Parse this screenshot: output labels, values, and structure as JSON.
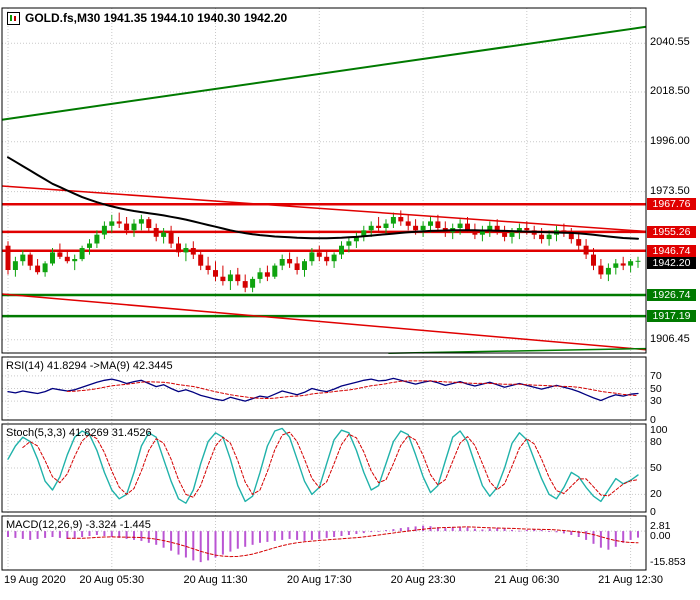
{
  "header": {
    "symbol": "GOLD.fs,M30",
    "ohlc_text": "1941.35 1944.10 1940.30 1942.20",
    "title": "GOLD.fs,M30 1941.35 1944.10 1940.30 1942.20"
  },
  "panes": {
    "rsi_label": "RSI(14) 41.8294  ->MA(9) 42.3445",
    "stoch_label": "Stoch(5,3,3) 41.8269 31.4526",
    "macd_label": "MACD(12,26,9) -3.324 -1.445"
  },
  "colors": {
    "up": "#0fa30f",
    "down": "#d40000",
    "ma": "#000000",
    "resistance": "#e00000",
    "support": "#007a00",
    "current": "#000000",
    "rsi": "#000080",
    "stoch": "#20b2aa",
    "signal": "#d40000",
    "macd_hist": "#ba55d3",
    "grid": "#c9c9c9",
    "border": "#000000"
  },
  "chart_data": [
    {
      "type": "candlestick",
      "symbol": "GOLD.fs",
      "timeframe": "M30",
      "open": 1941.35,
      "high": 1944.1,
      "low": 1940.3,
      "close": 1942.2,
      "ylim": [
        1900.5,
        2056.5
      ],
      "ohlc": [
        [
          1949,
          1951,
          1936,
          1938
        ],
        [
          1938,
          1944,
          1935,
          1942
        ],
        [
          1942,
          1947,
          1940,
          1945
        ],
        [
          1945,
          1946,
          1938,
          1940
        ],
        [
          1940,
          1943,
          1936,
          1937
        ],
        [
          1937,
          1942,
          1935,
          1941
        ],
        [
          1941,
          1948,
          1940,
          1946
        ],
        [
          1946,
          1950,
          1943,
          1944
        ],
        [
          1944,
          1947,
          1941,
          1942
        ],
        [
          1942,
          1945,
          1938,
          1943
        ],
        [
          1943,
          1949,
          1942,
          1948
        ],
        [
          1948,
          1952,
          1945,
          1950
        ],
        [
          1950,
          1956,
          1948,
          1954
        ],
        [
          1954,
          1960,
          1952,
          1958
        ],
        [
          1958,
          1963,
          1955,
          1960
        ],
        [
          1960,
          1964,
          1957,
          1959
        ],
        [
          1959,
          1962,
          1954,
          1956
        ],
        [
          1956,
          1961,
          1953,
          1959
        ],
        [
          1959,
          1963,
          1956,
          1961
        ],
        [
          1961,
          1962,
          1955,
          1957
        ],
        [
          1957,
          1959,
          1951,
          1953
        ],
        [
          1953,
          1957,
          1950,
          1955
        ],
        [
          1955,
          1958,
          1948,
          1950
        ],
        [
          1950,
          1953,
          1944,
          1946
        ],
        [
          1946,
          1950,
          1942,
          1948
        ],
        [
          1948,
          1951,
          1943,
          1945
        ],
        [
          1945,
          1947,
          1938,
          1940
        ],
        [
          1940,
          1944,
          1936,
          1938
        ],
        [
          1938,
          1942,
          1933,
          1935
        ],
        [
          1935,
          1940,
          1931,
          1933
        ],
        [
          1933,
          1938,
          1929,
          1936
        ],
        [
          1936,
          1939,
          1931,
          1933
        ],
        [
          1933,
          1936,
          1928,
          1930
        ],
        [
          1930,
          1935,
          1928,
          1934
        ],
        [
          1934,
          1939,
          1932,
          1937
        ],
        [
          1937,
          1940,
          1933,
          1935
        ],
        [
          1935,
          1941,
          1934,
          1940
        ],
        [
          1940,
          1945,
          1938,
          1943
        ],
        [
          1943,
          1946,
          1939,
          1941
        ],
        [
          1941,
          1944,
          1936,
          1938
        ],
        [
          1938,
          1943,
          1935,
          1942
        ],
        [
          1942,
          1948,
          1940,
          1946
        ],
        [
          1946,
          1949,
          1942,
          1944
        ],
        [
          1944,
          1947,
          1940,
          1942
        ],
        [
          1942,
          1946,
          1939,
          1945
        ],
        [
          1945,
          1951,
          1943,
          1949
        ],
        [
          1949,
          1953,
          1946,
          1951
        ],
        [
          1951,
          1955,
          1948,
          1953
        ],
        [
          1953,
          1958,
          1951,
          1956
        ],
        [
          1956,
          1960,
          1953,
          1958
        ],
        [
          1958,
          1962,
          1955,
          1957
        ],
        [
          1957,
          1961,
          1954,
          1959
        ],
        [
          1959,
          1964,
          1957,
          1962
        ],
        [
          1962,
          1965,
          1958,
          1960
        ],
        [
          1960,
          1963,
          1956,
          1958
        ],
        [
          1958,
          1961,
          1954,
          1956
        ],
        [
          1956,
          1960,
          1953,
          1958
        ],
        [
          1958,
          1962,
          1955,
          1960
        ],
        [
          1960,
          1963,
          1956,
          1957
        ],
        [
          1957,
          1960,
          1953,
          1955
        ],
        [
          1955,
          1959,
          1952,
          1957
        ],
        [
          1957,
          1961,
          1954,
          1959
        ],
        [
          1959,
          1962,
          1955,
          1956
        ],
        [
          1956,
          1959,
          1952,
          1954
        ],
        [
          1954,
          1958,
          1951,
          1956
        ],
        [
          1956,
          1960,
          1953,
          1958
        ],
        [
          1958,
          1961,
          1954,
          1955
        ],
        [
          1955,
          1958,
          1951,
          1953
        ],
        [
          1953,
          1957,
          1950,
          1955
        ],
        [
          1955,
          1959,
          1952,
          1957
        ],
        [
          1957,
          1960,
          1954,
          1956
        ],
        [
          1956,
          1958,
          1952,
          1954
        ],
        [
          1954,
          1957,
          1950,
          1952
        ],
        [
          1952,
          1956,
          1949,
          1954
        ],
        [
          1954,
          1958,
          1951,
          1956
        ],
        [
          1956,
          1959,
          1953,
          1955
        ],
        [
          1955,
          1957,
          1950,
          1952
        ],
        [
          1952,
          1955,
          1947,
          1949
        ],
        [
          1949,
          1952,
          1943,
          1945
        ],
        [
          1945,
          1948,
          1938,
          1940
        ],
        [
          1940,
          1943,
          1934,
          1936
        ],
        [
          1936,
          1941,
          1933,
          1939
        ],
        [
          1939,
          1943,
          1936,
          1941
        ],
        [
          1941,
          1944,
          1938,
          1940
        ],
        [
          1940,
          1943,
          1937,
          1942
        ],
        [
          1942,
          1944,
          1939,
          1942.2
        ]
      ],
      "ma_values": [
        1989,
        1987,
        1985,
        1983,
        1981,
        1979,
        1977,
        1975.5,
        1974,
        1972.5,
        1971,
        1969.8,
        1968.7,
        1967.7,
        1966.8,
        1966,
        1965.3,
        1964.7,
        1964.2,
        1963.7,
        1963.2,
        1962.7,
        1962.1,
        1961.5,
        1960.8,
        1960,
        1959.2,
        1958.4,
        1957.6,
        1956.8,
        1956,
        1955.3,
        1954.7,
        1954.2,
        1953.8,
        1953.5,
        1953.2,
        1953,
        1952.8,
        1952.6,
        1952.5,
        1952.4,
        1952.4,
        1952.4,
        1952.5,
        1952.6,
        1952.8,
        1953,
        1953.3,
        1953.6,
        1953.9,
        1954.2,
        1954.5,
        1954.8,
        1955.1,
        1955.3,
        1955.5,
        1955.7,
        1955.8,
        1955.9,
        1956,
        1956,
        1956,
        1956,
        1955.9,
        1955.9,
        1955.8,
        1955.7,
        1955.6,
        1955.5,
        1955.4,
        1955.3,
        1955.2,
        1955.1,
        1955,
        1954.9,
        1954.8,
        1954.6,
        1954.3,
        1954,
        1953.6,
        1953.2,
        1952.8,
        1952.5,
        1952.3,
        1952.2
      ],
      "grid": [
        {
          "label": "2040.55",
          "price": 2040.55
        },
        {
          "label": "2018.50",
          "price": 2018.5
        },
        {
          "label": "1996.00",
          "price": 1996.0
        },
        {
          "label": "1973.50",
          "price": 1973.5
        },
        {
          "label": "1906.45",
          "price": 1906.45
        }
      ],
      "levels": [
        {
          "label": "1967.76",
          "price": 1967.76,
          "kind": "resistance"
        },
        {
          "label": "1955.26",
          "price": 1955.26,
          "kind": "resistance"
        },
        {
          "label": "1946.74",
          "price": 1946.74,
          "kind": "resistance"
        },
        {
          "label": "1942.20",
          "price": 1942.2,
          "kind": "current"
        },
        {
          "label": "1926.74",
          "price": 1926.74,
          "kind": "support"
        },
        {
          "label": "1917.19",
          "price": 1917.19,
          "kind": "support"
        }
      ],
      "trendlines": [
        {
          "x1": 0,
          "p1": 2006,
          "x2": 1,
          "p2": 2048,
          "kind": "support",
          "width": 2
        },
        {
          "x1": 0,
          "p1": 1976,
          "x2": 1,
          "p2": 1955.5,
          "kind": "resistance",
          "width": 1.5
        },
        {
          "x1": 0,
          "p1": 1927.2,
          "x2": 1,
          "p2": 1902,
          "kind": "resistance",
          "width": 1.5
        },
        {
          "x1": 0.6,
          "p1": 1900.4,
          "x2": 1,
          "p2": 1902.5,
          "kind": "support",
          "width": 1.5
        }
      ],
      "x_labels": [
        "19 Aug 2020",
        "20 Aug 05:30",
        "20 Aug 11:30",
        "20 Aug 17:30",
        "20 Aug 23:30",
        "21 Aug 06:30",
        "21 Aug 12:30"
      ],
      "x_label_indices": [
        0,
        14,
        28,
        42,
        56,
        70,
        84
      ]
    },
    {
      "type": "line",
      "name": "RSI(14)",
      "value": 41.8294,
      "ma_value": 42.3445,
      "ma_period": 9,
      "ylim": [
        0,
        100
      ],
      "grid_values": [
        30,
        50,
        70
      ],
      "axis_labels": [
        {
          "label": "70",
          "value": 70
        },
        {
          "label": "50",
          "value": 50
        },
        {
          "label": "30",
          "value": 30
        },
        {
          "label": "0",
          "value": 0
        }
      ],
      "values": [
        45,
        43,
        46,
        44,
        42,
        45,
        50,
        48,
        46,
        48,
        52,
        56,
        60,
        63,
        65,
        62,
        58,
        61,
        63,
        58,
        53,
        56,
        50,
        45,
        48,
        44,
        39,
        36,
        33,
        31,
        36,
        33,
        30,
        34,
        38,
        36,
        41,
        46,
        43,
        40,
        44,
        50,
        47,
        45,
        49,
        54,
        57,
        60,
        63,
        65,
        62,
        63,
        66,
        63,
        60,
        57,
        60,
        62,
        59,
        55,
        58,
        61,
        57,
        54,
        57,
        60,
        56,
        52,
        55,
        58,
        55,
        52,
        49,
        52,
        55,
        52,
        49,
        45,
        40,
        35,
        31,
        36,
        40,
        38,
        41,
        42
      ]
    },
    {
      "type": "line",
      "name": "Stoch(5,3,3)",
      "k_value": 41.8269,
      "d_value": 31.4526,
      "signal_period": 3,
      "ylim": [
        0,
        100
      ],
      "grid_values": [
        20,
        50,
        80
      ],
      "axis_labels": [
        {
          "label": "100",
          "value": 100
        },
        {
          "label": "80",
          "value": 80
        },
        {
          "label": "50",
          "value": 50
        },
        {
          "label": "20",
          "value": 20
        },
        {
          "label": "0",
          "value": 0
        }
      ],
      "values": [
        60,
        75,
        85,
        80,
        60,
        35,
        25,
        40,
        65,
        85,
        92,
        88,
        70,
        45,
        25,
        15,
        20,
        45,
        75,
        90,
        85,
        60,
        35,
        15,
        10,
        25,
        55,
        80,
        90,
        85,
        60,
        30,
        12,
        18,
        45,
        75,
        92,
        95,
        85,
        60,
        35,
        20,
        28,
        55,
        82,
        93,
        90,
        70,
        45,
        25,
        30,
        55,
        80,
        92,
        88,
        65,
        40,
        22,
        30,
        58,
        85,
        92,
        80,
        55,
        30,
        18,
        28,
        50,
        78,
        90,
        82,
        60,
        38,
        20,
        15,
        28,
        45,
        40,
        28,
        18,
        12,
        25,
        38,
        32,
        36,
        42
      ]
    },
    {
      "type": "bar",
      "name": "MACD(12,26,9)",
      "macd_value": -3.324,
      "signal_value": -1.445,
      "signal_period": 9,
      "ylim": [
        -19.9,
        7.7
      ],
      "grid_values": [
        0
      ],
      "axis_labels": [
        {
          "label": "2.81",
          "value": 2.81
        },
        {
          "label": "0.00",
          "value": 0
        },
        {
          "label": "-15.853",
          "value": -15.853
        }
      ],
      "values": [
        -3,
        -3.5,
        -4,
        -4.5,
        -4,
        -3.5,
        -3,
        -3.5,
        -4,
        -3.5,
        -3,
        -2.5,
        -2,
        -2.5,
        -3,
        -3.5,
        -4,
        -4.5,
        -5,
        -6,
        -7,
        -8.5,
        -10,
        -12,
        -13.5,
        -15,
        -15.853,
        -15,
        -13.5,
        -12,
        -10.5,
        -9,
        -8,
        -7,
        -6,
        -5.5,
        -5,
        -4.5,
        -4,
        -4.5,
        -5,
        -4.5,
        -4,
        -3.5,
        -3,
        -2.5,
        -2,
        -1.5,
        -1,
        -0.5,
        0,
        0.5,
        1,
        1.5,
        2,
        2.4,
        2.81,
        2.5,
        2,
        1.5,
        1.8,
        2.2,
        1.8,
        1.2,
        0.8,
        1.2,
        1.6,
        1.2,
        0.6,
        0.2,
        0.6,
        1,
        0.6,
        0,
        -0.6,
        -1.2,
        -2,
        -3,
        -4.5,
        -6.5,
        -8.5,
        -9.5,
        -8,
        -6,
        -4.5,
        -3.324
      ]
    }
  ]
}
